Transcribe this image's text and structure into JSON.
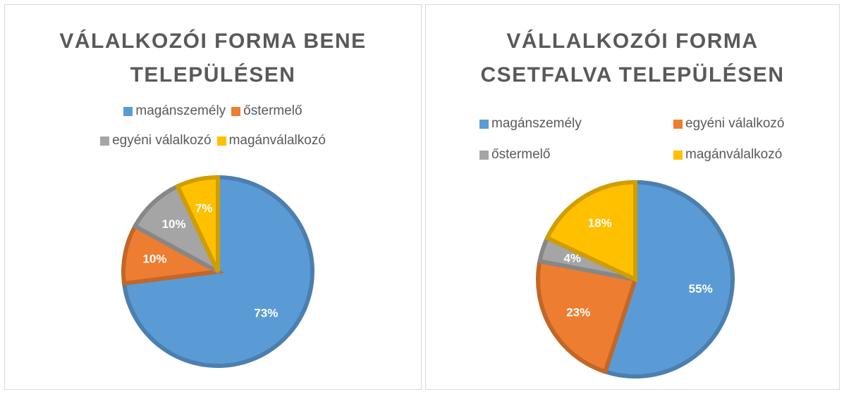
{
  "chart_data": [
    {
      "type": "pie",
      "title": "VÁLALKOZÓI FORMA BENE TELEPÜLÉSEN",
      "categories": [
        "magánszemély",
        "őstermelő",
        "egyéni válalkozó",
        "magánválalkozó"
      ],
      "values": [
        73,
        10,
        10,
        7
      ],
      "value_labels": [
        "73%",
        "10%",
        "10%",
        "7%"
      ],
      "colors": [
        "#5b9bd5",
        "#ed7d31",
        "#a5a5a5",
        "#ffc000"
      ]
    },
    {
      "type": "pie",
      "title": "VÁLLALKOZÓI FORMA CSETFALVA TELEPÜLÉSEN",
      "categories": [
        "magánszemély",
        "egyéni válalkozó",
        "őstermelő",
        "magánválalkozó"
      ],
      "values": [
        55,
        23,
        4,
        18
      ],
      "value_labels": [
        "55%",
        "23%",
        "4%",
        "18%"
      ],
      "colors": [
        "#5b9bd5",
        "#ed7d31",
        "#a5a5a5",
        "#ffc000"
      ]
    }
  ]
}
